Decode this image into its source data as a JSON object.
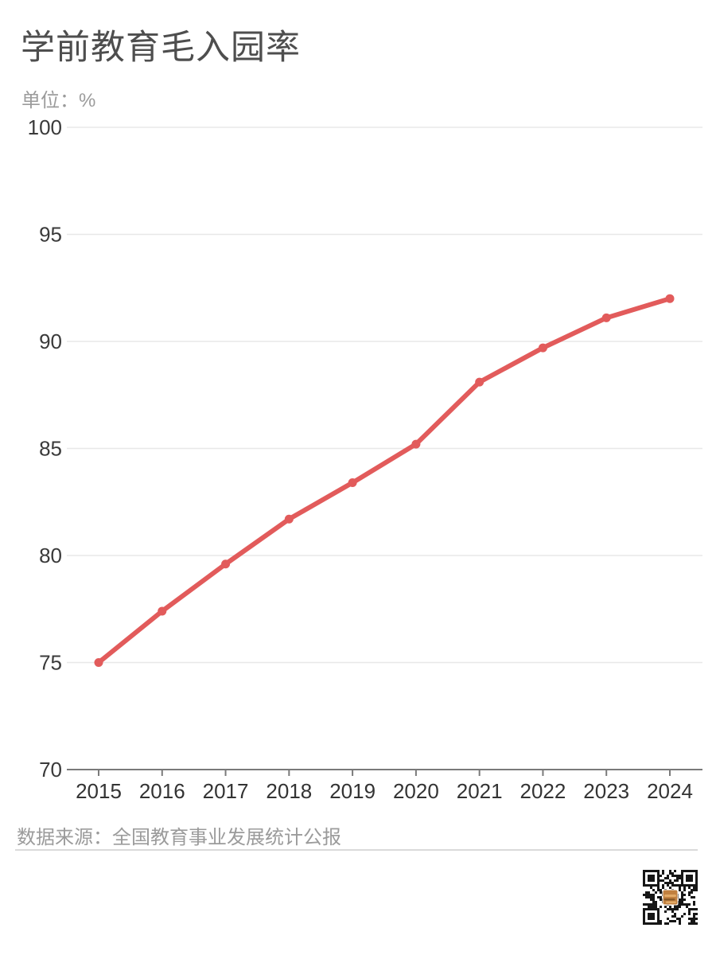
{
  "header": {
    "title": "学前教育毛入园率",
    "unit_label": "单位：%"
  },
  "footer": {
    "source": "数据来源：全国教育事业发展统计公报"
  },
  "icons": {
    "qr_code": "qr-code-with-center-logo"
  },
  "colors": {
    "line": "#e25b5b",
    "point": "#e25b5b",
    "title_text": "#4e4e4e",
    "muted_text": "#9b9b9b",
    "y_label_text": "#3a3a3a",
    "x_label_text": "#333333",
    "grid_line": "#e8e8e8",
    "axis_line": "#7a7a7a",
    "divider": "#dadada",
    "qr_dark": "#161616",
    "qr_logo": "#c1803f",
    "qr_logo_light": "#e3aa66",
    "qr_logo_dark": "#8a5a28"
  },
  "chart_data": {
    "type": "line",
    "title": "学前教育毛入园率",
    "unit": "%",
    "categories": [
      "2015",
      "2016",
      "2017",
      "2018",
      "2019",
      "2020",
      "2021",
      "2022",
      "2023",
      "2024"
    ],
    "series": [
      {
        "name": "学前教育毛入园率",
        "values": [
          75.0,
          77.4,
          79.6,
          81.7,
          83.4,
          85.2,
          88.1,
          89.7,
          91.1,
          92.0
        ]
      }
    ],
    "xlabel": "",
    "ylabel": "%",
    "ylim": [
      70,
      100
    ],
    "ytick_step": 5,
    "grid": true,
    "legend_position": "none"
  }
}
